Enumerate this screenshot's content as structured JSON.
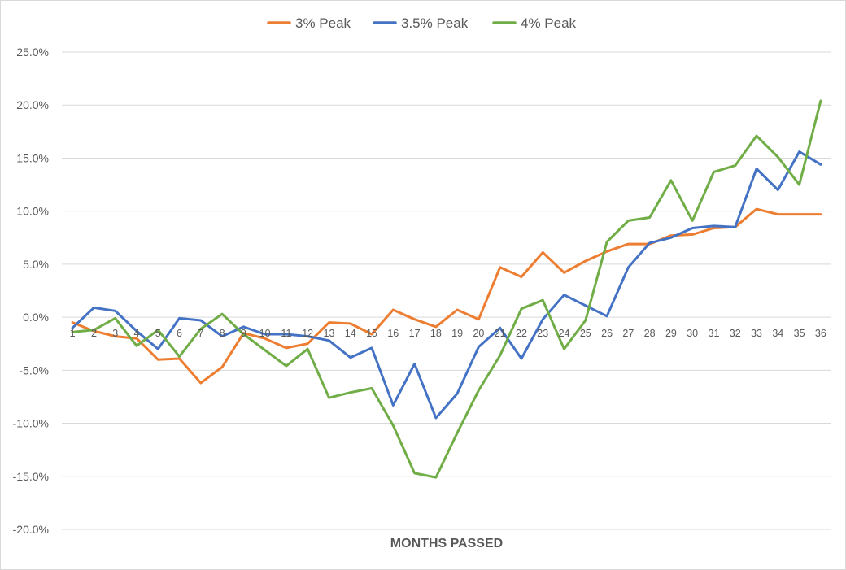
{
  "chart_data": {
    "type": "line",
    "title": "",
    "xlabel": "MONTHS PASSED",
    "ylabel": "",
    "ylim": [
      -20,
      25
    ],
    "yticks": [
      25,
      20,
      15,
      10,
      5,
      0,
      -5,
      -10,
      -15,
      -20
    ],
    "ytick_labels": [
      "25.0%",
      "20.0%",
      "15.0%",
      "10.0%",
      "5.0%",
      "0.0%",
      "-5.0%",
      "-10.0%",
      "-15.0%",
      "-20.0%"
    ],
    "grid": true,
    "legend_position": "top",
    "x": [
      1,
      2,
      3,
      4,
      5,
      6,
      7,
      8,
      9,
      10,
      11,
      12,
      13,
      14,
      15,
      16,
      17,
      18,
      19,
      20,
      21,
      22,
      23,
      24,
      25,
      26,
      27,
      28,
      29,
      30,
      31,
      32,
      33,
      34,
      35,
      36
    ],
    "series": [
      {
        "name": "3% Peak",
        "color": "#ED7D31",
        "values": [
          -0.5,
          -1.3,
          -1.8,
          -2.0,
          -4.0,
          -3.9,
          -6.2,
          -4.7,
          -1.5,
          -2.0,
          -2.9,
          -2.5,
          -0.5,
          -0.6,
          -1.6,
          0.7,
          -0.2,
          -0.9,
          0.7,
          -0.2,
          4.7,
          3.8,
          6.1,
          4.2,
          5.3,
          6.2,
          6.9,
          6.9,
          7.7,
          7.8,
          8.4,
          8.5,
          10.2,
          9.7,
          9.7,
          9.7
        ]
      },
      {
        "name": "3.5% Peak",
        "color": "#4472C4",
        "values": [
          -1.0,
          0.9,
          0.6,
          -1.3,
          -3.0,
          -0.1,
          -0.3,
          -1.8,
          -0.9,
          -1.6,
          -1.6,
          -1.8,
          -2.2,
          -3.8,
          -2.9,
          -8.3,
          -4.4,
          -9.5,
          -7.2,
          -2.8,
          -1.0,
          -3.9,
          -0.2,
          2.1,
          1.1,
          0.1,
          4.7,
          7.0,
          7.5,
          8.4,
          8.6,
          8.5,
          14.0,
          12.0,
          15.6,
          14.4
        ]
      },
      {
        "name": "4% Peak",
        "color": "#70AD47",
        "values": [
          -1.4,
          -1.2,
          -0.1,
          -2.7,
          -1.2,
          -3.7,
          -1.1,
          0.3,
          -1.6,
          -3.1,
          -4.6,
          -3.0,
          -7.6,
          -7.1,
          -6.7,
          -10.2,
          -14.7,
          -15.1,
          -10.9,
          -6.9,
          -3.6,
          0.8,
          1.6,
          -3.0,
          -0.3,
          7.1,
          9.1,
          9.4,
          12.9,
          9.1,
          13.7,
          14.3,
          17.1,
          15.1,
          12.5,
          20.4
        ]
      }
    ]
  }
}
